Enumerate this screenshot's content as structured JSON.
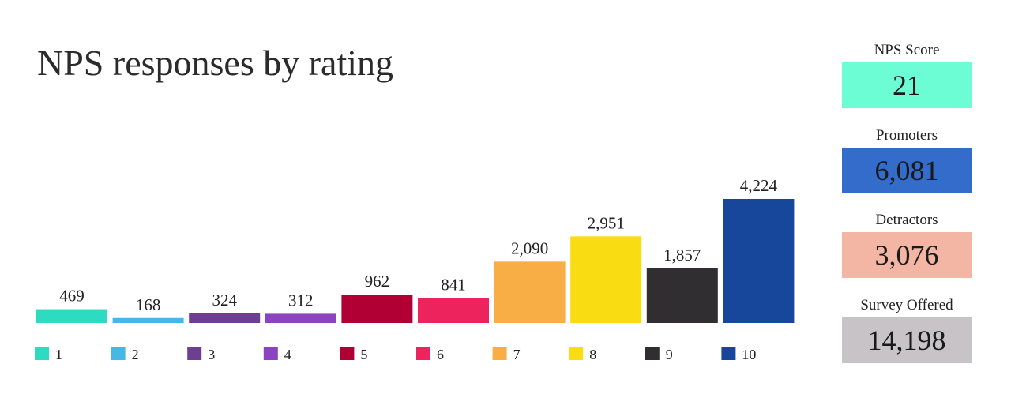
{
  "title": "NPS responses by rating",
  "chart_data": {
    "type": "bar",
    "categories": [
      "1",
      "2",
      "3",
      "4",
      "5",
      "6",
      "7",
      "8",
      "9",
      "10"
    ],
    "values": [
      469,
      168,
      324,
      312,
      962,
      841,
      2090,
      2951,
      1857,
      4224
    ],
    "value_labels": [
      "469",
      "168",
      "324",
      "312",
      "962",
      "841",
      "2,090",
      "2,951",
      "1,857",
      "4,224"
    ],
    "colors": [
      "#2ddcc0",
      "#45b8e6",
      "#6e3f91",
      "#8c43c2",
      "#b10033",
      "#ec235c",
      "#f8ae45",
      "#fadc12",
      "#302e31",
      "#17479a"
    ],
    "legend": {
      "position": "bottom"
    },
    "grid": false,
    "axes_visible": false,
    "ylim": [
      0,
      4224
    ]
  },
  "kpis": [
    {
      "label": "NPS Score",
      "value": "21",
      "color": "#6cfdd4"
    },
    {
      "label": "Promoters",
      "value": "6,081",
      "color": "#336ccb"
    },
    {
      "label": "Detractors",
      "value": "3,076",
      "color": "#f3b6a5"
    },
    {
      "label": "Survey Offered",
      "value": "14,198",
      "color": "#c7c3c6"
    }
  ]
}
